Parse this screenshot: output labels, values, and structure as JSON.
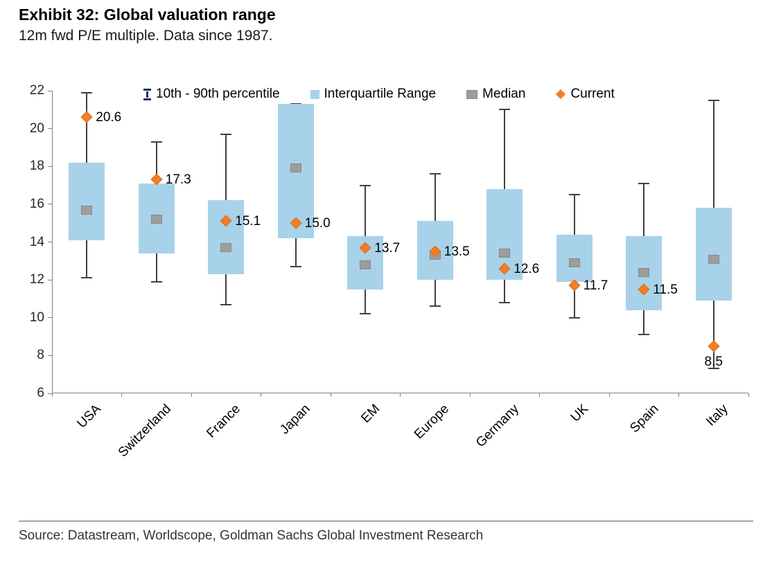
{
  "header": {
    "title": "Exhibit 32: Global valuation range",
    "subtitle": "12m fwd P/E multiple. Data since 1987."
  },
  "legend": {
    "percentile": "10th - 90th percentile",
    "iqr": "Interquartile Range",
    "median": "Median",
    "current": "Current"
  },
  "footer": {
    "source": "Source: Datastream, Worldscope, Goldman Sachs Global Investment Research"
  },
  "colors": {
    "iqr_box": "#a8d2e9",
    "median": "#9d9d99",
    "current": "#f07e26",
    "whisker": "#404040",
    "axis": "#808080"
  },
  "chart_data": {
    "type": "boxplot",
    "title": "Exhibit 32: Global valuation range",
    "subtitle": "12m fwd P/E multiple. Data since 1987.",
    "ylabel": "12m fwd P/E multiple",
    "ylim": [
      6,
      22
    ],
    "ytick_step": 2,
    "legend_entries": [
      "10th - 90th percentile",
      "Interquartile Range",
      "Median",
      "Current"
    ],
    "categories": [
      "USA",
      "Switzerland",
      "France",
      "Japan",
      "EM",
      "Europe",
      "Germany",
      "UK",
      "Spain",
      "Italy"
    ],
    "series": [
      {
        "name": "USA",
        "p10": 12.1,
        "p25": 14.1,
        "median": 15.7,
        "p75": 18.2,
        "p90": 21.9,
        "current": 20.6,
        "current_label": "20.6",
        "label_pos": "right"
      },
      {
        "name": "Switzerland",
        "p10": 11.9,
        "p25": 13.4,
        "median": 15.2,
        "p75": 17.1,
        "p90": 19.3,
        "current": 17.3,
        "current_label": "17.3",
        "label_pos": "right"
      },
      {
        "name": "France",
        "p10": 10.7,
        "p25": 12.3,
        "median": 13.7,
        "p75": 16.2,
        "p90": 19.7,
        "current": 15.1,
        "current_label": "15.1",
        "label_pos": "right"
      },
      {
        "name": "Japan",
        "p10": 12.7,
        "p25": 14.2,
        "median": 17.9,
        "p75": 21.3,
        "p90": 21.3,
        "current": 15.0,
        "current_label": "15.0",
        "label_pos": "right"
      },
      {
        "name": "EM",
        "p10": 10.2,
        "p25": 11.5,
        "median": 12.8,
        "p75": 14.3,
        "p90": 17.0,
        "current": 13.7,
        "current_label": "13.7",
        "label_pos": "right"
      },
      {
        "name": "Europe",
        "p10": 10.6,
        "p25": 12.0,
        "median": 13.3,
        "p75": 15.1,
        "p90": 17.6,
        "current": 13.5,
        "current_label": "13.5",
        "label_pos": "right"
      },
      {
        "name": "Germany",
        "p10": 10.8,
        "p25": 12.0,
        "median": 13.4,
        "p75": 16.8,
        "p90": 21.0,
        "current": 12.6,
        "current_label": "12.6",
        "label_pos": "right"
      },
      {
        "name": "UK",
        "p10": 10.0,
        "p25": 11.9,
        "median": 12.9,
        "p75": 14.4,
        "p90": 16.5,
        "current": 11.7,
        "current_label": "11.7",
        "label_pos": "right"
      },
      {
        "name": "Spain",
        "p10": 9.1,
        "p25": 10.4,
        "median": 12.4,
        "p75": 14.3,
        "p90": 17.1,
        "current": 11.5,
        "current_label": "11.5",
        "label_pos": "right"
      },
      {
        "name": "Italy",
        "p10": 7.3,
        "p25": 10.9,
        "median": 13.1,
        "p75": 15.8,
        "p90": 21.5,
        "current": 8.5,
        "current_label": "8.5",
        "label_pos": "below"
      }
    ]
  }
}
